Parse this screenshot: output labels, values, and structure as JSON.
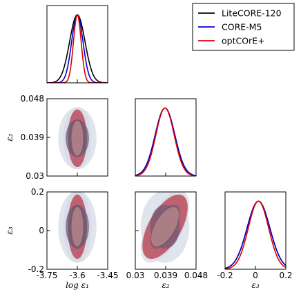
{
  "chart_data": {
    "type": "triangle",
    "parameters": [
      {
        "key": "logeps1",
        "label": "log ε₁",
        "range": [
          -3.75,
          -3.45
        ],
        "ticks": [
          "-3.75",
          "-3.6",
          "-3.45"
        ],
        "tick_values": [
          -3.75,
          -3.6,
          -3.45
        ]
      },
      {
        "key": "eps2",
        "label": "ε₂",
        "range": [
          0.03,
          0.048
        ],
        "ticks": [
          "0.03",
          "0.039",
          "0.048"
        ],
        "tick_values": [
          0.03,
          0.039,
          0.048
        ]
      },
      {
        "key": "eps3",
        "label": "ε₃",
        "range": [
          -0.2,
          0.2
        ],
        "ticks": [
          "-0.2",
          "0",
          "0.2"
        ],
        "tick_values": [
          -0.2,
          0,
          0.2
        ]
      }
    ],
    "series": [
      {
        "name": "LiteCORE-120",
        "color": "#000000",
        "mean": [
          -3.6,
          0.0388,
          0.02
        ],
        "sigma": [
          0.038,
          0.0029,
          0.075
        ],
        "corr": {
          "0-1": 0.0,
          "0-2": 0.0,
          "1-2": 0.0
        }
      },
      {
        "name": "CORE-M5",
        "color": "#0000cc",
        "mean": [
          -3.6,
          0.0388,
          0.02
        ],
        "sigma": [
          0.028,
          0.0029,
          0.075
        ],
        "corr": {
          "0-1": 0.0,
          "0-2": 0.0,
          "1-2": 0.6
        }
      },
      {
        "name": "optCOrE+",
        "color": "#e00000",
        "mean": [
          -3.6,
          0.0388,
          0.02
        ],
        "sigma": [
          0.019,
          0.0027,
          0.067
        ],
        "corr": {
          "0-1": 0.0,
          "0-2": 0.0,
          "1-2": 0.6
        }
      }
    ],
    "contour_style": {
      "outer": {
        "LiteCORE-120": "#d5dbe7",
        "CORE-M5": "#d5dbe7",
        "optCOrE+": "#bc4b5a"
      },
      "inner": {
        "LiteCORE-120": "#6e5a74",
        "CORE-M5": "#6e5a74",
        "optCOrE+": "#b58488"
      }
    },
    "legend": {
      "placement": "top-right",
      "entries": [
        "LiteCORE-120",
        "CORE-M5",
        "optCOrE+"
      ]
    }
  }
}
